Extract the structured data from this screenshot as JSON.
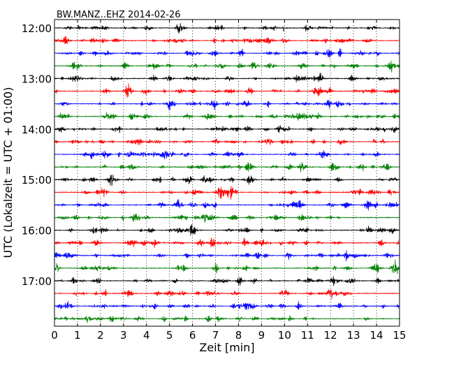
{
  "chart_data": {
    "type": "line",
    "title": "BW.MANZ..EHZ 2014-02-26",
    "xlabel": "Zeit  [min]",
    "ylabel": "UTC (Lokalzeit = UTC + 01:00)",
    "xlim": [
      0,
      15
    ],
    "x_ticks": [
      "0",
      "1",
      "2",
      "3",
      "4",
      "5",
      "6",
      "7",
      "8",
      "9",
      "10",
      "11",
      "12",
      "13",
      "14",
      "15"
    ],
    "y_ticks": [
      "12:00",
      "13:00",
      "14:00",
      "15:00",
      "16:00",
      "17:00"
    ],
    "trace_minutes": 15,
    "trace_count": 24,
    "trace_colors": [
      "#000000",
      "#ff0000",
      "#0000ff",
      "#008000"
    ],
    "grid": "vertical dotted lines at each minute"
  }
}
